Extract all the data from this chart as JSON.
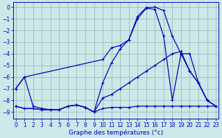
{
  "xlabel": "Graphe des températures (°c)",
  "bg_color": "#cce8e8",
  "grid_color": "#99bbbb",
  "line_color": "#0000bb",
  "xlim": [
    -0.3,
    23.3
  ],
  "ylim": [
    -9.6,
    0.4
  ],
  "yticks": [
    0,
    -1,
    -2,
    -3,
    -4,
    -5,
    -6,
    -7,
    -8,
    -9
  ],
  "xticks": [
    0,
    1,
    2,
    3,
    4,
    5,
    6,
    7,
    8,
    9,
    10,
    11,
    12,
    13,
    14,
    15,
    16,
    17,
    18,
    19,
    20,
    21,
    22,
    23
  ],
  "series": [
    {
      "x": [
        0,
        1,
        2,
        3,
        4,
        5,
        6,
        7,
        8,
        9,
        10,
        11,
        12,
        13,
        14,
        15,
        16,
        17,
        18,
        19,
        20,
        21,
        22,
        23
      ],
      "y": [
        -8.5,
        -8.7,
        -8.7,
        -8.8,
        -8.8,
        -8.8,
        -8.5,
        -8.4,
        -8.6,
        -9.0,
        -8.7,
        -8.6,
        -8.6,
        -8.6,
        -8.5,
        -8.5,
        -8.5,
        -8.5,
        -8.5,
        -8.5,
        -8.5,
        -8.5,
        -8.5,
        -8.5
      ]
    },
    {
      "x": [
        0,
        1,
        2,
        3,
        4,
        5,
        6,
        7,
        8,
        9,
        10,
        11,
        12,
        13,
        14,
        15,
        16,
        17,
        18,
        19,
        20,
        21,
        22,
        23
      ],
      "y": [
        -8.5,
        -8.7,
        -8.7,
        -8.8,
        -8.8,
        -8.8,
        -8.5,
        -8.4,
        -8.6,
        -9.0,
        -7.8,
        -7.5,
        -7.0,
        -6.5,
        -6.0,
        -5.5,
        -5.0,
        -4.5,
        -4.0,
        -3.8,
        -5.5,
        -6.5,
        -8.0,
        -8.5
      ]
    },
    {
      "x": [
        0,
        1,
        2,
        3,
        4,
        5,
        6,
        7,
        8,
        9,
        10,
        11,
        12,
        13,
        14,
        15,
        16,
        17,
        18,
        19,
        20,
        21,
        22,
        23
      ],
      "y": [
        -7.0,
        -6.0,
        -8.5,
        -8.7,
        -8.8,
        -8.8,
        -8.5,
        -8.4,
        -8.6,
        -9.0,
        -6.5,
        -4.8,
        -3.6,
        -2.8,
        -1.0,
        -0.1,
        -0.2,
        -2.5,
        -8.0,
        -4.0,
        -5.5,
        -6.5,
        -8.0,
        -8.5
      ]
    },
    {
      "x": [
        0,
        1,
        10,
        11,
        12,
        13,
        14,
        15,
        16,
        17,
        18,
        19,
        20,
        21,
        22,
        23
      ],
      "y": [
        -7.0,
        -6.0,
        -4.5,
        -3.5,
        -3.3,
        -2.8,
        -0.8,
        -0.05,
        0.0,
        -0.3,
        -2.5,
        -4.0,
        -4.0,
        -6.5,
        -8.0,
        -8.5
      ]
    }
  ],
  "xlabel_fontsize": 6.5,
  "tick_labelsize": 5.5,
  "linewidth": 0.9,
  "markersize": 2.5,
  "markeredgewidth": 0.8
}
